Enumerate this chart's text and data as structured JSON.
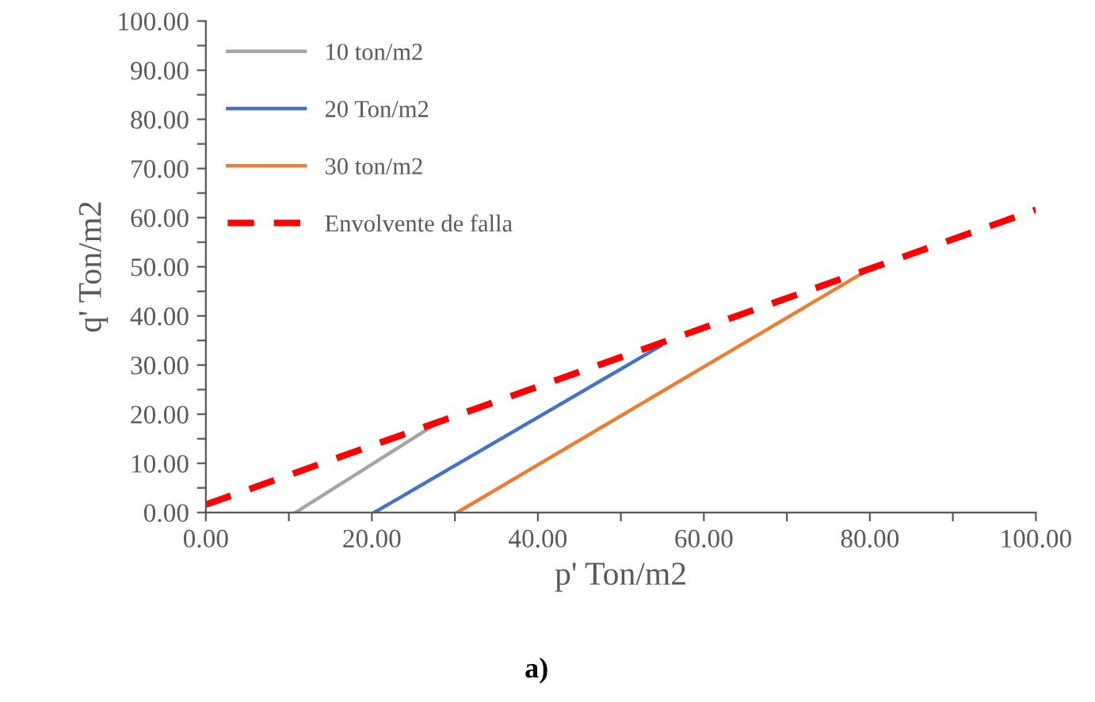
{
  "chart_data": {
    "type": "line",
    "xlabel": "p' Ton/m2",
    "ylabel": "q' Ton/m2",
    "annotations": [
      "a)"
    ],
    "xlim": [
      0,
      100
    ],
    "ylim": [
      0,
      100
    ],
    "xticks": [
      {
        "value": 0,
        "label": "0.00"
      },
      {
        "value": 10,
        "label": null
      },
      {
        "value": 20,
        "label": "20.00"
      },
      {
        "value": 30,
        "label": null
      },
      {
        "value": 40,
        "label": "40.00"
      },
      {
        "value": 50,
        "label": null
      },
      {
        "value": 60,
        "label": "60.00"
      },
      {
        "value": 70,
        "label": null
      },
      {
        "value": 80,
        "label": "80.00"
      },
      {
        "value": 90,
        "label": null
      },
      {
        "value": 100,
        "label": "100.00"
      }
    ],
    "yticks": [
      {
        "value": 0,
        "label": "0.00"
      },
      {
        "value": 5,
        "label": null
      },
      {
        "value": 10,
        "label": "10.00"
      },
      {
        "value": 15,
        "label": null
      },
      {
        "value": 20,
        "label": "20.00"
      },
      {
        "value": 25,
        "label": null
      },
      {
        "value": 30,
        "label": "30.00"
      },
      {
        "value": 35,
        "label": null
      },
      {
        "value": 40,
        "label": "40.00"
      },
      {
        "value": 45,
        "label": null
      },
      {
        "value": 50,
        "label": "50.00"
      },
      {
        "value": 55,
        "label": null
      },
      {
        "value": 60,
        "label": "60.00"
      },
      {
        "value": 65,
        "label": null
      },
      {
        "value": 70,
        "label": "70.00"
      },
      {
        "value": 75,
        "label": null
      },
      {
        "value": 80,
        "label": "80.00"
      },
      {
        "value": 85,
        "label": null
      },
      {
        "value": 90,
        "label": "90.00"
      },
      {
        "value": 95,
        "label": null
      },
      {
        "value": 100,
        "label": "100.00"
      }
    ],
    "grid": false,
    "legend": "top left",
    "marker": "none",
    "series": [
      {
        "name": "10 ton/m2",
        "color": "#a5a5a5",
        "x": [
          10.8,
          29
        ],
        "values": [
          0,
          19.4
        ]
      },
      {
        "name": "20 Ton/m2",
        "color": "#4472c4",
        "x": [
          20.3,
          54.8
        ],
        "values": [
          0,
          33.9
        ]
      },
      {
        "name": "30 ton/m2",
        "color": "#ed7d31",
        "x": [
          30.3,
          79.9
        ],
        "values": [
          0,
          49.5
        ]
      },
      {
        "name": "Envolvente de falla",
        "color": "#ff0000",
        "line_style": "dashed",
        "x": [
          0,
          100
        ],
        "values": [
          1.6,
          61.6
        ]
      }
    ]
  }
}
